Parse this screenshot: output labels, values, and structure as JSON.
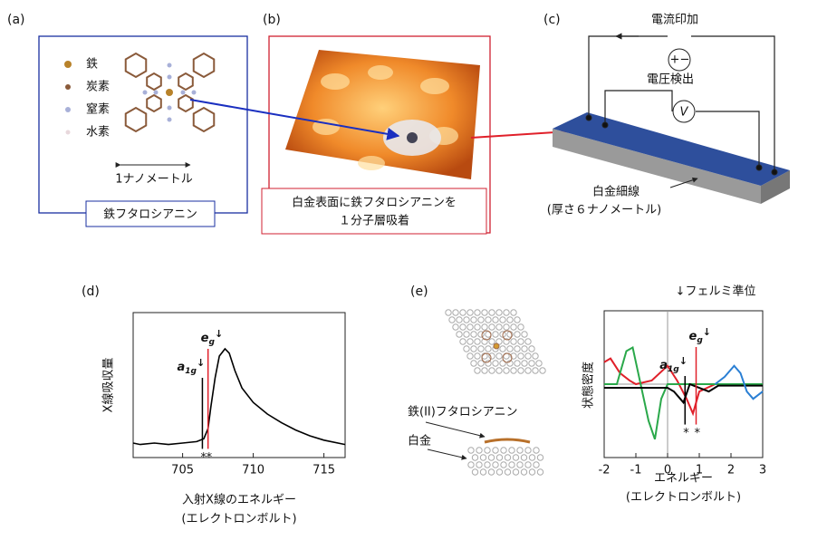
{
  "panels": {
    "a": {
      "label": "(a)",
      "legend": [
        "鉄",
        "炭素",
        "窒素",
        "水素"
      ],
      "scale": "1ナノメートル",
      "caption": "鉄フタロシアニン"
    },
    "b": {
      "label": "(b)",
      "caption": [
        "白金表面に鉄フタロシアニンを",
        "１分子層吸着"
      ]
    },
    "c": {
      "label": "(c)",
      "current": "電流印加",
      "plus": "+",
      "minus": "−",
      "voltage": "電圧検出",
      "meter": "V",
      "wire": [
        "白金細線",
        "(厚さ６ナノメートル)"
      ]
    },
    "d": {
      "label": "(d)"
    },
    "e": {
      "label": "(e)",
      "fermi": "↓フェルミ準位",
      "molecule": "鉄(II)フタロシアニン",
      "substrate": "白金"
    }
  },
  "chart_data": [
    {
      "type": "line",
      "x_label": [
        "入射X線のエネルギー",
        "(エレクトロンボルト)"
      ],
      "y_label": "X線吸収量",
      "xlim": [
        701.5,
        716.5
      ],
      "ylim": [
        0,
        1
      ],
      "xticks": [
        705,
        710,
        715
      ],
      "series": [
        {
          "color": "#000000",
          "x": [
            701.5,
            702,
            703,
            704,
            705,
            706,
            706.5,
            706.8,
            707,
            707.3,
            707.6,
            708,
            708.3,
            708.7,
            709.2,
            710,
            711,
            712,
            713,
            714,
            715,
            716.5
          ],
          "values": [
            0.1,
            0.09,
            0.1,
            0.09,
            0.1,
            0.11,
            0.13,
            0.2,
            0.35,
            0.55,
            0.7,
            0.75,
            0.72,
            0.6,
            0.48,
            0.38,
            0.3,
            0.24,
            0.19,
            0.15,
            0.12,
            0.09
          ]
        }
      ],
      "annotations": [
        {
          "x": 706.4,
          "symbol": "a",
          "subscript": "1g",
          "spin": "↓",
          "marker": "*",
          "color": "#000000"
        },
        {
          "x": 706.8,
          "symbol": "e",
          "subscript": "g",
          "spin": "↓",
          "marker": "*",
          "color": "#e0202a"
        }
      ]
    },
    {
      "type": "line",
      "x_label": [
        "エネルギー",
        "(エレクトロンボルト)"
      ],
      "y_label": "状態密度",
      "xlim": [
        -2,
        3
      ],
      "ylim": [
        -1,
        1
      ],
      "xticks": [
        -2,
        -1,
        0,
        1,
        2,
        3
      ],
      "series": [
        {
          "color": "#e0202a",
          "x": [
            -2,
            -1.8,
            -1.5,
            -1.2,
            -1,
            -0.5,
            0,
            0.3,
            0.6,
            0.8,
            1,
            1.5,
            2,
            2.5,
            3
          ],
          "values": [
            0.3,
            0.35,
            0.15,
            0.05,
            0,
            0.05,
            0.25,
            0.05,
            -0.2,
            -0.4,
            -0.1,
            0,
            0,
            0,
            0
          ]
        },
        {
          "color": "#2aa84a",
          "x": [
            -2,
            -1.6,
            -1.3,
            -1.1,
            -0.9,
            -0.6,
            -0.4,
            -0.2,
            0,
            0.5,
            1,
            2,
            3
          ],
          "values": [
            0,
            0,
            0.45,
            0.5,
            0.1,
            -0.5,
            -0.75,
            -0.2,
            0,
            0,
            0,
            0,
            0
          ]
        },
        {
          "color": "#000000",
          "x": [
            -2,
            -1,
            0,
            0.2,
            0.4,
            0.5,
            0.7,
            1,
            1.3,
            1.6,
            2,
            3
          ],
          "values": [
            -0.05,
            -0.05,
            -0.05,
            -0.1,
            -0.2,
            -0.25,
            0,
            -0.05,
            -0.1,
            -0.02,
            -0.02,
            -0.02
          ]
        },
        {
          "color": "#2a7fd4",
          "x": [
            1.5,
            1.8,
            2.1,
            2.3,
            2.5,
            2.7,
            3
          ],
          "values": [
            0,
            0.1,
            0.25,
            0.15,
            -0.1,
            -0.2,
            -0.1
          ]
        }
      ],
      "annotations": [
        {
          "x": 0.55,
          "symbol": "a",
          "subscript": "1g",
          "spin": "↓",
          "marker": "*",
          "color": "#000000"
        },
        {
          "x": 0.9,
          "symbol": "e",
          "subscript": "g",
          "spin": "↓",
          "marker": "*",
          "color": "#e0202a"
        }
      ]
    }
  ]
}
